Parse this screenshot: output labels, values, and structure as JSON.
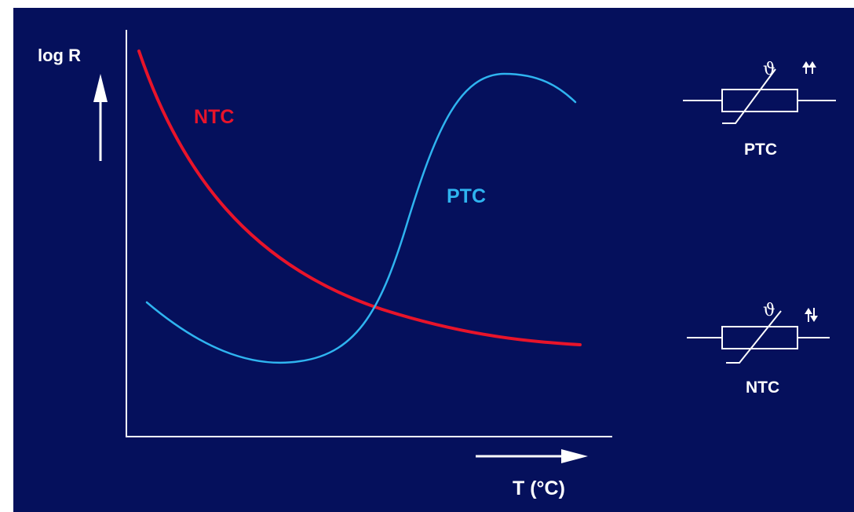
{
  "colors": {
    "background": "#05105c",
    "foreground": "#ffffff",
    "ntc": "#e8142a",
    "ptc": "#2fb4f0"
  },
  "axes": {
    "y_label": "log R",
    "x_label": "T (°C)"
  },
  "curves": {
    "ntc_label": "NTC",
    "ptc_label": "PTC"
  },
  "symbols": {
    "ptc": {
      "caption": "PTC",
      "theta": "ϑ",
      "arrows_icon": "arrows-up-up-icon"
    },
    "ntc": {
      "caption": "NTC",
      "theta": "ϑ",
      "arrows_icon": "arrows-up-down-icon"
    }
  }
}
